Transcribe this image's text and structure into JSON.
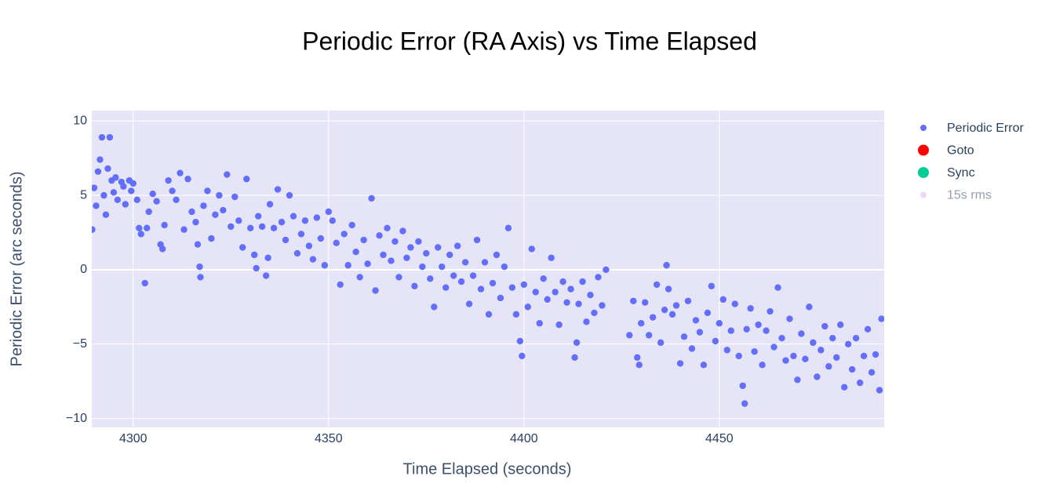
{
  "chart_data": {
    "type": "scatter",
    "title": "Periodic Error (RA Axis) vs Time Elapsed",
    "xlabel": "Time Elapsed (seconds)",
    "ylabel": "Periodic Error (arc seconds)",
    "xlim": [
      4289.4,
      4492.2
    ],
    "ylim": [
      -10.6,
      10.7
    ],
    "xticks": [
      4300,
      4350,
      4400,
      4450
    ],
    "yticks": [
      {
        "value": -10,
        "label": "−10"
      },
      {
        "value": -5,
        "label": "−5"
      },
      0,
      5,
      10
    ],
    "grid": true,
    "legend": "right",
    "series": [
      {
        "name": "Periodic Error",
        "color": "#636efa",
        "visible": true,
        "x": [
          4289.5,
          4290,
          4290.5,
          4291,
          4291.5,
          4292,
          4292.5,
          4293,
          4293.5,
          4294,
          4294.5,
          4295,
          4295.5,
          4296,
          4297,
          4297.5,
          4298,
          4299,
          4299.5,
          4300,
          4301,
          4301.5,
          4302,
          4303,
          4303.5,
          4304,
          4305,
          4306,
          4307,
          4307.5,
          4308,
          4309,
          4310,
          4311,
          4312,
          4313,
          4314,
          4315,
          4316,
          4316.5,
          4317,
          4317.2,
          4318,
          4319,
          4320,
          4321,
          4322,
          4323,
          4324,
          4325,
          4326,
          4327,
          4328,
          4329,
          4330,
          4331,
          4331.5,
          4332,
          4333,
          4334,
          4334.5,
          4335,
          4336,
          4337,
          4338,
          4339,
          4340,
          4341,
          4342,
          4343,
          4344,
          4345,
          4346,
          4347,
          4348,
          4349,
          4350,
          4351,
          4352,
          4353,
          4354,
          4355,
          4356,
          4357,
          4358,
          4359,
          4360,
          4361,
          4362,
          4363,
          4364,
          4365,
          4366,
          4367,
          4368,
          4369,
          4370,
          4371,
          4372,
          4373,
          4374,
          4375,
          4376,
          4377,
          4378,
          4379,
          4380,
          4381,
          4382,
          4383,
          4384,
          4385,
          4386,
          4387,
          4388,
          4389,
          4390,
          4391,
          4392,
          4393,
          4394,
          4395,
          4396,
          4397,
          4398,
          4399,
          4399.5,
          4400,
          4401,
          4402,
          4403,
          4404,
          4405,
          4406,
          4407,
          4408,
          4409,
          4410,
          4411,
          4412,
          4413,
          4413.5,
          4414,
          4415,
          4416,
          4417,
          4418,
          4419,
          4420,
          4421,
          4427,
          4428,
          4429,
          4429.5,
          4430,
          4431,
          4432,
          4433,
          4434,
          4435,
          4436,
          4436.5,
          4437,
          4438,
          4439,
          4440,
          4441,
          4442,
          4443,
          4444,
          4445,
          4446,
          4447,
          4448,
          4449,
          4450,
          4451,
          4452,
          4453,
          4454,
          4455,
          4456,
          4456.5,
          4457,
          4458,
          4459,
          4460,
          4461,
          4462,
          4463,
          4464,
          4465,
          4466,
          4467,
          4468,
          4469,
          4470,
          4471,
          4472,
          4473,
          4474,
          4475,
          4476,
          4477,
          4478,
          4479,
          4480,
          4481,
          4482,
          4483,
          4484,
          4485,
          4486,
          4487,
          4488,
          4489,
          4490,
          4491,
          4491.5
        ],
        "values": [
          2.7,
          5.5,
          4.3,
          6.6,
          7.4,
          8.9,
          5.0,
          3.7,
          6.8,
          8.9,
          6.0,
          5.2,
          6.2,
          4.7,
          5.9,
          5.6,
          4.4,
          6.0,
          5.3,
          5.8,
          4.7,
          2.8,
          2.4,
          -0.9,
          2.8,
          3.9,
          5.1,
          4.6,
          1.7,
          1.4,
          3.0,
          6.0,
          5.3,
          4.7,
          6.5,
          2.7,
          6.1,
          3.9,
          3.2,
          1.7,
          0.2,
          -0.5,
          4.3,
          5.3,
          2.1,
          3.7,
          5.0,
          4.0,
          6.4,
          2.9,
          4.9,
          3.3,
          1.5,
          6.1,
          2.8,
          1.0,
          0.1,
          3.6,
          2.9,
          -0.4,
          0.8,
          4.4,
          2.8,
          5.4,
          3.2,
          2.0,
          5.0,
          3.6,
          1.1,
          2.4,
          3.3,
          1.6,
          0.7,
          3.5,
          2.1,
          0.3,
          3.9,
          3.3,
          1.8,
          -1.0,
          2.4,
          0.3,
          3.0,
          1.2,
          -0.5,
          2.0,
          0.4,
          4.8,
          -1.4,
          2.3,
          1.0,
          2.8,
          0.6,
          1.9,
          -0.5,
          2.6,
          0.8,
          1.5,
          -1.1,
          1.9,
          0.2,
          1.1,
          -0.6,
          -2.5,
          1.5,
          0.2,
          -1.2,
          1.0,
          -0.4,
          1.6,
          -0.8,
          0.5,
          -2.3,
          -0.4,
          2.0,
          -1.3,
          0.5,
          -3.0,
          -0.9,
          1.0,
          -1.9,
          0.2,
          2.8,
          -1.2,
          -3.0,
          -4.8,
          -5.8,
          -1.0,
          -2.5,
          1.4,
          -1.5,
          -3.6,
          -0.6,
          -2.0,
          0.8,
          -1.5,
          -3.7,
          -0.8,
          -2.2,
          -1.3,
          -5.9,
          -4.9,
          -2.3,
          -0.8,
          -3.5,
          -1.7,
          -2.9,
          -0.5,
          -2.4,
          0.0,
          -4.4,
          -2.1,
          -5.9,
          -6.4,
          -3.6,
          -2.2,
          -4.4,
          -3.2,
          -1.0,
          -4.9,
          -2.7,
          0.3,
          -1.3,
          -3.0,
          -2.4,
          -6.3,
          -4.5,
          -2.1,
          -5.3,
          -3.4,
          -4.2,
          -6.4,
          -2.9,
          -1.1,
          -4.8,
          -3.6,
          -2.0,
          -5.4,
          -4.1,
          -2.3,
          -5.8,
          -7.8,
          -9.0,
          -4.0,
          -2.6,
          -5.5,
          -3.7,
          -6.4,
          -4.1,
          -2.8,
          -5.2,
          -1.2,
          -4.6,
          -6.1,
          -3.3,
          -5.8,
          -7.4,
          -4.3,
          -6.0,
          -2.5,
          -4.9,
          -7.2,
          -5.4,
          -3.8,
          -6.5,
          -4.6,
          -5.9,
          -3.7,
          -7.9,
          -5.0,
          -6.7,
          -4.6,
          -7.6,
          -5.8,
          -4.0,
          -6.9,
          -5.7,
          -8.1,
          -3.3
        ]
      },
      {
        "name": "Goto",
        "color": "#ff0000",
        "visible": true,
        "x": [],
        "values": []
      },
      {
        "name": "Sync",
        "color": "#00cc96",
        "visible": true,
        "x": [],
        "values": []
      },
      {
        "name": "15s rms",
        "color": "#ab63fa",
        "visible": "legendonly",
        "x": [],
        "values": []
      }
    ]
  }
}
